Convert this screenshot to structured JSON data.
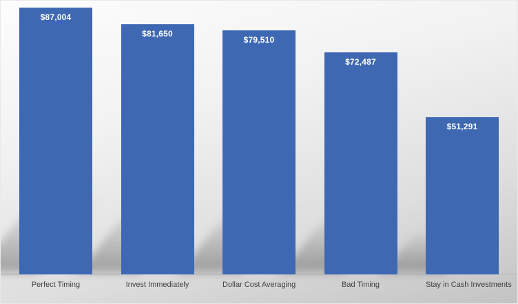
{
  "chart_data": {
    "type": "bar",
    "title": "",
    "xlabel": "",
    "ylabel": "",
    "categories": [
      "Perfect Timing",
      "Invest Immediately",
      "Dollar Cost Averaging",
      "Bad Timing",
      "Stay in Cash Investments"
    ],
    "values": [
      87004,
      81650,
      79510,
      72487,
      51291
    ],
    "value_labels": [
      "$87,004",
      "$81,650",
      "$79,510",
      "$72,487",
      "$51,291"
    ],
    "ylim": [
      0,
      90000
    ],
    "grid": false,
    "legend": false,
    "bar_color": "#3e68b2",
    "value_label_color": "#ffffff",
    "category_label_color": "#404040",
    "axis_line_color": "#b3b3b3"
  }
}
